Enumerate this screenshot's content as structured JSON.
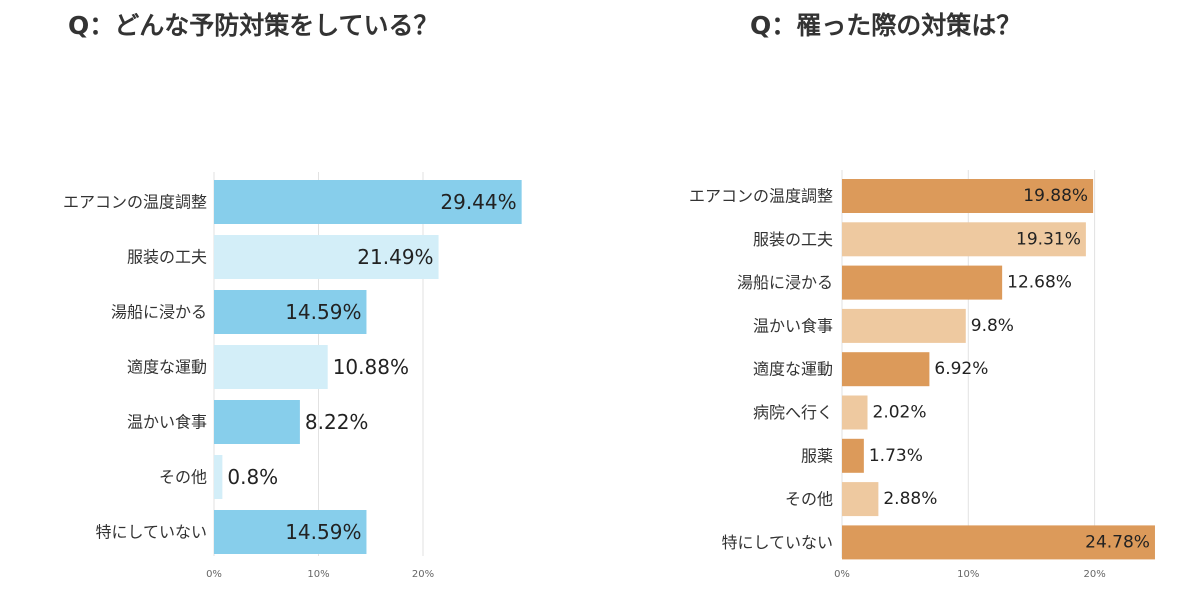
{
  "chart_data": [
    {
      "type": "bar",
      "orientation": "horizontal",
      "title": "Q：どんな予防対策をしている？",
      "categories": [
        "エアコンの温度調整",
        "服装の工夫",
        "湯船に浸かる",
        "適度な運動",
        "温かい食事",
        "その他",
        "特にしていない"
      ],
      "values": [
        29.44,
        21.49,
        14.59,
        10.88,
        8.22,
        0.8,
        14.59
      ],
      "value_labels": [
        "29.44%",
        "21.49%",
        "14.59%",
        "10.88%",
        "8.22%",
        "0.8%",
        "14.59%"
      ],
      "ticks": [
        0,
        10,
        20
      ],
      "tick_labels": [
        "0%",
        "10%",
        "20%"
      ],
      "xlim": [
        0,
        30
      ],
      "grid": true,
      "colors": [
        "#87CEEB",
        "#D3EEF8"
      ]
    },
    {
      "type": "bar",
      "orientation": "horizontal",
      "title": "Q：罹った際の対策は？",
      "categories": [
        "エアコンの温度調整",
        "服装の工夫",
        "湯船に浸かる",
        "温かい食事",
        "適度な運動",
        "病院へ行く",
        "服薬",
        "その他",
        "特にしていない"
      ],
      "values": [
        19.88,
        19.31,
        12.68,
        9.8,
        6.92,
        2.02,
        1.73,
        2.88,
        24.78
      ],
      "value_labels": [
        "19.88%",
        "19.31%",
        "12.68%",
        "9.8%",
        "6.92%",
        "2.02%",
        "1.73%",
        "2.88%",
        "24.78%"
      ],
      "ticks": [
        0,
        10,
        20
      ],
      "tick_labels": [
        "0%",
        "10%",
        "20%"
      ],
      "xlim": [
        0,
        25
      ],
      "grid": true,
      "colors": [
        "#DC9A5A",
        "#EEC9A0"
      ]
    }
  ]
}
